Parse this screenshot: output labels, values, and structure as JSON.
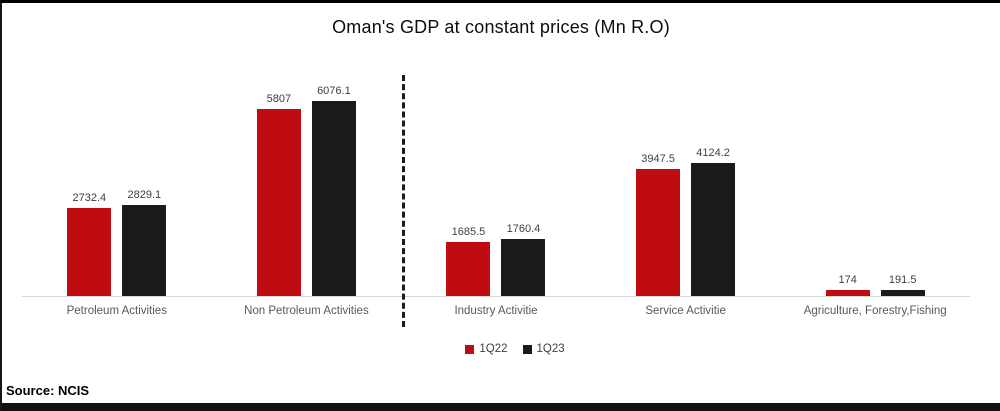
{
  "window": {
    "source_label": "Source: NCIS"
  },
  "chart_data": {
    "type": "bar",
    "title": "Oman's GDP at constant prices (Mn R.O)",
    "categories": [
      "Petroleum Activities",
      "Non Petroleum Activities",
      "Industry Activitie",
      "Service Activitie",
      "Agriculture, Forestry,Fishing"
    ],
    "series": [
      {
        "name": "1Q22",
        "color": "#c00b10",
        "values": [
          2732.4,
          5807,
          1685.5,
          3947.5,
          174
        ],
        "labels": [
          "2732.4",
          "5807",
          "1685.5",
          "3947.5",
          "174"
        ]
      },
      {
        "name": "1Q23",
        "color": "#1a1a1c",
        "values": [
          2829.1,
          6076.1,
          1760.4,
          4124.2,
          191.5
        ],
        "labels": [
          "2829.1",
          "6076.1",
          "1760.4",
          "4124.2",
          "191.5"
        ]
      }
    ],
    "ylim": [
      0,
      7000
    ],
    "grid": false,
    "legend_position": "bottom-center",
    "separator": {
      "after_category_index": 1,
      "style": "dashed-vertical"
    }
  }
}
